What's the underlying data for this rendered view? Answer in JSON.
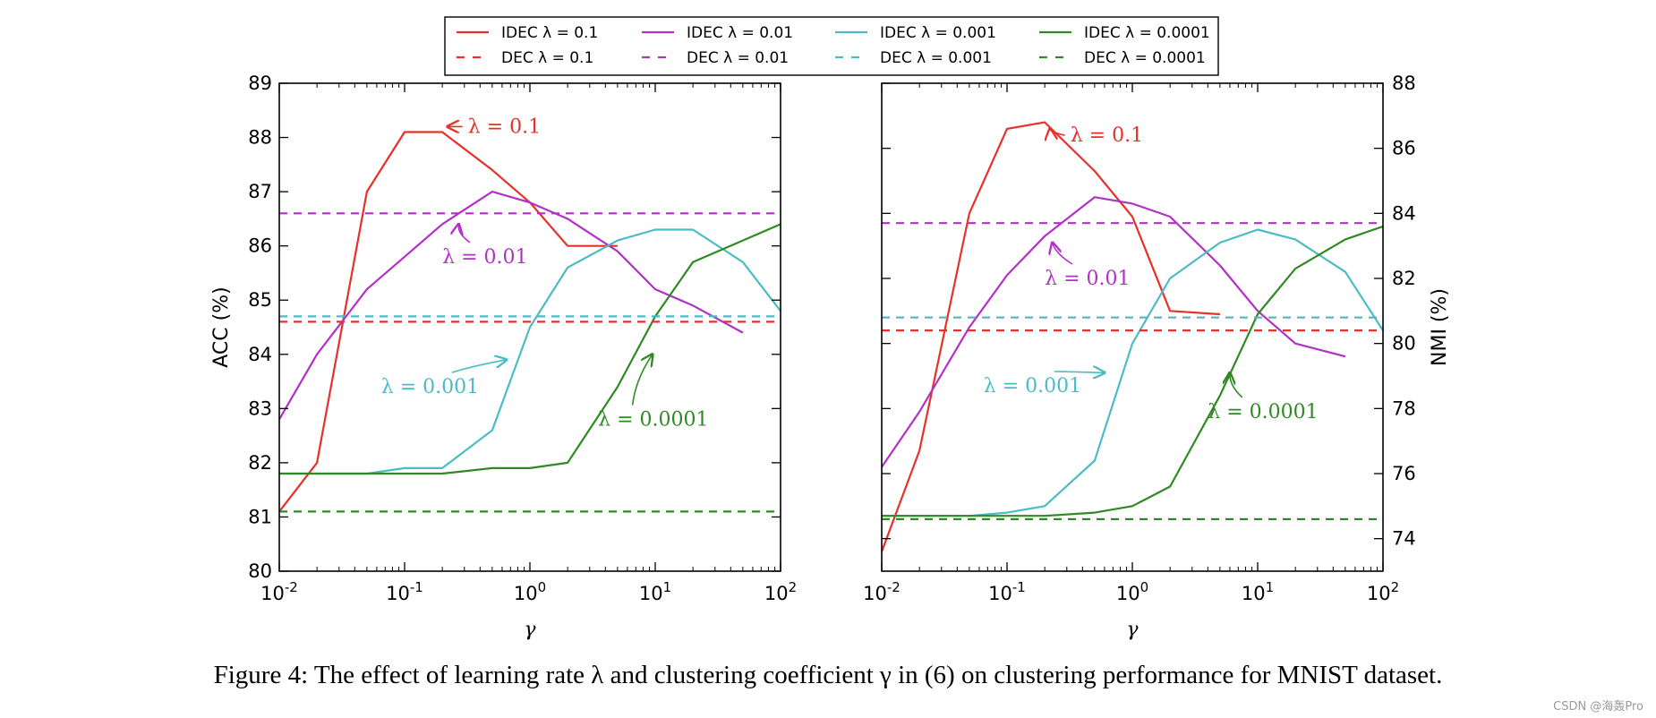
{
  "caption": "Figure 4: The effect of learning rate λ and clustering coefficient γ in (6) on clustering performance for MNIST dataset.",
  "watermark": "CSDN @海轰Pro",
  "chart_data": [
    {
      "type": "line",
      "xscale": "log",
      "xlabel": "γ",
      "ylabel": "ACC (%)",
      "xlim": [
        0.01,
        100
      ],
      "ylim": [
        80,
        89
      ],
      "x_ticks": [
        0.01,
        0.1,
        1,
        10,
        100
      ],
      "x_tick_labels": [
        [
          "10",
          "-2"
        ],
        [
          "10",
          "-1"
        ],
        [
          "10",
          "0"
        ],
        [
          "10",
          "1"
        ],
        [
          "10",
          "2"
        ]
      ],
      "y_ticks": [
        80,
        81,
        82,
        83,
        84,
        85,
        86,
        87,
        88,
        89
      ],
      "y_tick_labels": [
        "80",
        "81",
        "82",
        "83",
        "84",
        "85",
        "86",
        "87",
        "88",
        "89"
      ],
      "yaxis_side": "left",
      "series": [
        {
          "name": "IDEC λ=0.1",
          "color": "#e8302a",
          "style": "solid",
          "x": [
            0.01,
            0.02,
            0.05,
            0.1,
            0.2,
            0.5,
            1,
            2,
            5
          ],
          "y": [
            81.1,
            82.0,
            87.0,
            88.1,
            88.1,
            87.4,
            86.8,
            86.0,
            86.0
          ]
        },
        {
          "name": "IDEC λ=0.01",
          "color": "#b230c6",
          "style": "solid",
          "x": [
            0.01,
            0.02,
            0.05,
            0.1,
            0.2,
            0.5,
            1,
            2,
            5,
            10,
            20,
            50
          ],
          "y": [
            82.8,
            84.0,
            85.2,
            85.8,
            86.4,
            87.0,
            86.8,
            86.5,
            85.9,
            85.2,
            84.9,
            84.4
          ]
        },
        {
          "name": "IDEC λ=0.001",
          "color": "#4cbcc4",
          "style": "solid",
          "x": [
            0.01,
            0.02,
            0.05,
            0.1,
            0.2,
            0.5,
            1,
            2,
            5,
            10,
            20,
            50,
            100
          ],
          "y": [
            81.8,
            81.8,
            81.8,
            81.9,
            81.9,
            82.6,
            84.5,
            85.6,
            86.1,
            86.3,
            86.3,
            85.7,
            84.8
          ]
        },
        {
          "name": "IDEC λ=0.0001",
          "color": "#2f8a24",
          "style": "solid",
          "x": [
            0.01,
            0.02,
            0.05,
            0.1,
            0.2,
            0.5,
            1,
            2,
            5,
            10,
            20,
            50,
            100
          ],
          "y": [
            81.8,
            81.8,
            81.8,
            81.8,
            81.8,
            81.9,
            81.9,
            82.0,
            83.4,
            84.7,
            85.7,
            86.1,
            86.4
          ]
        },
        {
          "name": "DEC λ=0.1",
          "color": "#e8302a",
          "style": "dashed",
          "x": [
            0.01,
            100
          ],
          "y": [
            84.6,
            84.6
          ]
        },
        {
          "name": "DEC λ=0.01",
          "color": "#b230c6",
          "style": "dashed",
          "x": [
            0.01,
            100
          ],
          "y": [
            86.6,
            86.6
          ]
        },
        {
          "name": "DEC λ=0.001",
          "color": "#4cbcc4",
          "style": "dashed",
          "x": [
            0.01,
            100
          ],
          "y": [
            84.7,
            84.7
          ]
        },
        {
          "name": "DEC λ=0.0001",
          "color": "#2f8a24",
          "style": "dashed",
          "x": [
            0.01,
            100
          ],
          "y": [
            81.1,
            81.1
          ]
        }
      ],
      "annotations": [
        {
          "name": "annotation-lambda-0-1",
          "text": "λ = 0.1",
          "color": "#e8302a",
          "text_xy": [
            0.32,
            88.2
          ],
          "arrow_to": [
            0.22,
            88.2
          ]
        },
        {
          "name": "annotation-lambda-0-01",
          "text": "λ = 0.01",
          "color": "#b230c6",
          "text_xy": [
            0.2,
            85.8
          ],
          "arrow_to": [
            0.27,
            86.4
          ]
        },
        {
          "name": "annotation-lambda-0-001",
          "text": "λ = 0.001",
          "color": "#4cbcc4",
          "text_xy": [
            0.065,
            83.4
          ],
          "arrow_to": [
            0.65,
            83.9
          ]
        },
        {
          "name": "annotation-lambda-0-0001",
          "text": "λ = 0.0001",
          "color": "#2f8a24",
          "text_xy": [
            3.5,
            82.8
          ],
          "arrow_to": [
            9.5,
            84.0
          ]
        }
      ]
    },
    {
      "type": "line",
      "xscale": "log",
      "xlabel": "γ",
      "ylabel": "NMI (%)",
      "xlim": [
        0.01,
        100
      ],
      "ylim": [
        73,
        88
      ],
      "x_ticks": [
        0.01,
        0.1,
        1,
        10,
        100
      ],
      "x_tick_labels": [
        [
          "10",
          "-2"
        ],
        [
          "10",
          "-1"
        ],
        [
          "10",
          "0"
        ],
        [
          "10",
          "1"
        ],
        [
          "10",
          "2"
        ]
      ],
      "y_ticks": [
        74,
        76,
        78,
        80,
        82,
        84,
        86,
        88
      ],
      "y_tick_labels": [
        "74",
        "76",
        "78",
        "80",
        "82",
        "84",
        "86",
        "88"
      ],
      "yaxis_side": "right",
      "series": [
        {
          "name": "IDEC λ=0.1",
          "color": "#e8302a",
          "style": "solid",
          "x": [
            0.01,
            0.02,
            0.05,
            0.1,
            0.2,
            0.5,
            1,
            2,
            5
          ],
          "y": [
            73.6,
            76.7,
            84.0,
            86.6,
            86.8,
            85.3,
            83.9,
            81.0,
            80.9
          ]
        },
        {
          "name": "IDEC λ=0.01",
          "color": "#b230c6",
          "style": "solid",
          "x": [
            0.01,
            0.02,
            0.05,
            0.1,
            0.2,
            0.5,
            1,
            2,
            5,
            10,
            20,
            50
          ],
          "y": [
            76.2,
            77.9,
            80.5,
            82.1,
            83.3,
            84.5,
            84.3,
            83.9,
            82.4,
            81.0,
            80.0,
            79.6
          ]
        },
        {
          "name": "IDEC λ=0.001",
          "color": "#4cbcc4",
          "style": "solid",
          "x": [
            0.01,
            0.02,
            0.05,
            0.1,
            0.2,
            0.5,
            1,
            2,
            5,
            10,
            20,
            50,
            100
          ],
          "y": [
            74.7,
            74.7,
            74.7,
            74.8,
            75.0,
            76.4,
            80.0,
            82.0,
            83.1,
            83.5,
            83.2,
            82.2,
            80.4
          ]
        },
        {
          "name": "IDEC λ=0.0001",
          "color": "#2f8a24",
          "style": "solid",
          "x": [
            0.01,
            0.02,
            0.05,
            0.1,
            0.2,
            0.5,
            1,
            2,
            5,
            10,
            20,
            50,
            100
          ],
          "y": [
            74.7,
            74.7,
            74.7,
            74.7,
            74.7,
            74.8,
            75.0,
            75.6,
            78.4,
            80.9,
            82.3,
            83.2,
            83.6
          ]
        },
        {
          "name": "DEC λ=0.1",
          "color": "#e8302a",
          "style": "dashed",
          "x": [
            0.01,
            100
          ],
          "y": [
            80.4,
            80.4
          ]
        },
        {
          "name": "DEC λ=0.01",
          "color": "#b230c6",
          "style": "dashed",
          "x": [
            0.01,
            100
          ],
          "y": [
            83.7,
            83.7
          ]
        },
        {
          "name": "DEC λ=0.001",
          "color": "#4cbcc4",
          "style": "dashed",
          "x": [
            0.01,
            100
          ],
          "y": [
            80.8,
            80.8
          ]
        },
        {
          "name": "DEC λ=0.0001",
          "color": "#2f8a24",
          "style": "dashed",
          "x": [
            0.01,
            100
          ],
          "y": [
            74.6,
            74.6
          ]
        }
      ],
      "annotations": [
        {
          "name": "annotation-lambda-0-1",
          "text": "λ = 0.1",
          "color": "#e8302a",
          "text_xy": [
            0.32,
            86.4
          ],
          "arrow_to": [
            0.22,
            86.6
          ]
        },
        {
          "name": "annotation-lambda-0-01",
          "text": "λ = 0.01",
          "color": "#b230c6",
          "text_xy": [
            0.2,
            82.0
          ],
          "arrow_to": [
            0.23,
            83.1
          ]
        },
        {
          "name": "annotation-lambda-0-001",
          "text": "λ = 0.001",
          "color": "#4cbcc4",
          "text_xy": [
            0.065,
            78.7
          ],
          "arrow_to": [
            0.6,
            79.1
          ]
        },
        {
          "name": "annotation-lambda-0-0001",
          "text": "λ = 0.0001",
          "color": "#2f8a24",
          "text_xy": [
            4.0,
            77.9
          ],
          "arrow_to": [
            6.0,
            79.1
          ]
        }
      ]
    }
  ],
  "legend": {
    "placement": "top-center",
    "entries": [
      {
        "label": "IDEC λ = 0.1",
        "color": "#e8302a",
        "style": "solid"
      },
      {
        "label": "DEC λ = 0.1",
        "color": "#e8302a",
        "style": "dashed"
      },
      {
        "label": "IDEC λ = 0.01",
        "color": "#b230c6",
        "style": "solid"
      },
      {
        "label": "DEC λ = 0.01",
        "color": "#b230c6",
        "style": "dashed"
      },
      {
        "label": "IDEC λ = 0.001",
        "color": "#4cbcc4",
        "style": "solid"
      },
      {
        "label": "DEC λ = 0.001",
        "color": "#4cbcc4",
        "style": "dashed"
      },
      {
        "label": "IDEC λ = 0.0001",
        "color": "#2f8a24",
        "style": "solid"
      },
      {
        "label": "DEC λ = 0.0001",
        "color": "#2f8a24",
        "style": "dashed"
      }
    ]
  }
}
